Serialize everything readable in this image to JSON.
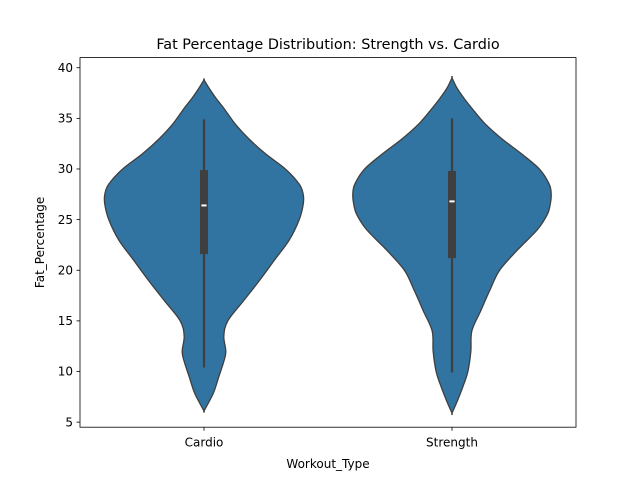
{
  "chart_data": {
    "type": "violin",
    "title": "Fat Percentage Distribution: Strength vs. Cardio",
    "xlabel": "Workout_Type",
    "ylabel": "Fat_Percentage",
    "ylim": [
      4.5,
      41
    ],
    "yticks": [
      5,
      10,
      15,
      20,
      25,
      30,
      35,
      40
    ],
    "categories": [
      "Cardio",
      "Strength"
    ],
    "fill_color": "#3274a1",
    "edge_color": "#3f3f3f",
    "box_color": "#3f3f3f",
    "median_color": "#ffffff",
    "violins": [
      {
        "category": "Cardio",
        "min": 10.4,
        "q1": 21.6,
        "median": 26.4,
        "q3": 29.9,
        "max": 34.9,
        "density_profile": [
          [
            6.1,
            0.0
          ],
          [
            7.0,
            0.05
          ],
          [
            8.0,
            0.1
          ],
          [
            9.5,
            0.15
          ],
          [
            11.0,
            0.2
          ],
          [
            12.0,
            0.22
          ],
          [
            13.5,
            0.2
          ],
          [
            15.0,
            0.24
          ],
          [
            17.0,
            0.4
          ],
          [
            19.0,
            0.56
          ],
          [
            21.0,
            0.71
          ],
          [
            23.0,
            0.86
          ],
          [
            25.0,
            0.96
          ],
          [
            26.5,
            1.0
          ],
          [
            27.5,
            1.0
          ],
          [
            28.5,
            0.96
          ],
          [
            30.0,
            0.82
          ],
          [
            31.5,
            0.62
          ],
          [
            33.0,
            0.45
          ],
          [
            34.5,
            0.31
          ],
          [
            36.0,
            0.2
          ],
          [
            37.0,
            0.12
          ],
          [
            38.0,
            0.05
          ],
          [
            38.8,
            0.0
          ]
        ]
      },
      {
        "category": "Strength",
        "min": 9.9,
        "q1": 21.2,
        "median": 26.8,
        "q3": 29.8,
        "max": 35.0,
        "density_profile": [
          [
            5.9,
            0.0
          ],
          [
            7.0,
            0.05
          ],
          [
            8.5,
            0.11
          ],
          [
            10.0,
            0.16
          ],
          [
            12.0,
            0.19
          ],
          [
            14.0,
            0.2
          ],
          [
            16.0,
            0.29
          ],
          [
            18.0,
            0.38
          ],
          [
            20.0,
            0.48
          ],
          [
            22.0,
            0.66
          ],
          [
            24.0,
            0.86
          ],
          [
            25.5,
            0.96
          ],
          [
            26.5,
            0.99
          ],
          [
            27.5,
            1.0
          ],
          [
            28.5,
            0.98
          ],
          [
            30.0,
            0.88
          ],
          [
            31.5,
            0.7
          ],
          [
            33.0,
            0.5
          ],
          [
            34.5,
            0.33
          ],
          [
            36.0,
            0.2
          ],
          [
            37.0,
            0.12
          ],
          [
            38.0,
            0.05
          ],
          [
            39.0,
            0.0
          ]
        ]
      }
    ]
  }
}
